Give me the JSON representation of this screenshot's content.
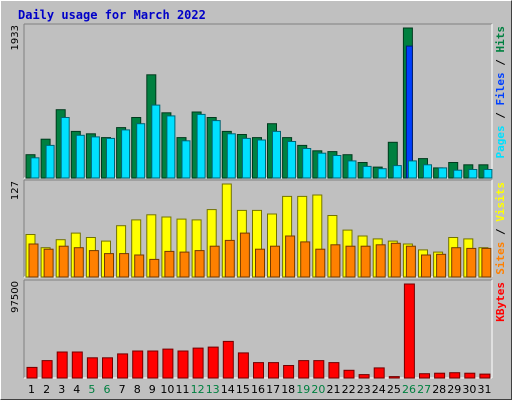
{
  "chart_data": {
    "title": "Daily usage for March 2022",
    "days": [
      "1",
      "2",
      "3",
      "4",
      "5",
      "6",
      "7",
      "8",
      "9",
      "10",
      "11",
      "12",
      "13",
      "14",
      "15",
      "16",
      "17",
      "18",
      "19",
      "20",
      "21",
      "22",
      "23",
      "24",
      "25",
      "26",
      "27",
      "28",
      "29",
      "30",
      "31"
    ],
    "weekend_days": [
      "5",
      "6",
      "12",
      "13",
      "19",
      "20",
      "26",
      "27"
    ],
    "colors": {
      "hits": "#008040",
      "files": "#0040ff",
      "pages": "#00e0ff",
      "visits": "#ffff00",
      "sites": "#ff8000",
      "kbytes": "#ff0000",
      "weekday_label": "#000000",
      "weekend_label": "#008040"
    },
    "panels": [
      {
        "type": "bar",
        "ymax_label": "1933",
        "ymax": 1933,
        "series": [
          {
            "name": "Hits",
            "values": [
              300,
              500,
              880,
              600,
              570,
              520,
              650,
              780,
              1330,
              840,
              520,
              850,
              780,
              600,
              560,
              520,
              700,
              520,
              420,
              350,
              340,
              300,
              200,
              140,
              460,
              1933,
              250,
              130,
              200,
              170,
              170
            ]
          },
          {
            "name": "Files",
            "values": [
              0,
              0,
              0,
              0,
              0,
              0,
              0,
              0,
              0,
              0,
              0,
              0,
              0,
              0,
              0,
              0,
              0,
              0,
              0,
              0,
              0,
              0,
              0,
              0,
              0,
              1700,
              0,
              0,
              0,
              0,
              0
            ]
          },
          {
            "name": "Pages",
            "values": [
              260,
              420,
              780,
              550,
              530,
              510,
              620,
              700,
              940,
              800,
              480,
              820,
              740,
              570,
              510,
              490,
              600,
              470,
              380,
              320,
              290,
              220,
              150,
              120,
              160,
              220,
              170,
              130,
              100,
              110,
              110
            ]
          }
        ],
        "right_label": [
          {
            "text": "Pages",
            "color": "#00e0ff"
          },
          {
            "text": " / ",
            "color": "#000000"
          },
          {
            "text": "Files",
            "color": "#0040ff"
          },
          {
            "text": " / ",
            "color": "#000000"
          },
          {
            "text": "Hits",
            "color": "#008040"
          }
        ]
      },
      {
        "type": "bar",
        "ymax_label": "127",
        "ymax": 127,
        "series": [
          {
            "name": "Visits",
            "values": [
              58,
              40,
              51,
              60,
              54,
              49,
              70,
              78,
              85,
              82,
              79,
              78,
              92,
              127,
              91,
              91,
              86,
              110,
              110,
              112,
              84,
              64,
              56,
              52,
              49,
              45,
              37,
              34,
              54,
              52,
              40
            ]
          },
          {
            "name": "Sites",
            "values": [
              45,
              38,
              42,
              40,
              36,
              32,
              32,
              30,
              24,
              35,
              34,
              36,
              42,
              50,
              60,
              38,
              42,
              56,
              48,
              38,
              44,
              42,
              42,
              44,
              46,
              42,
              30,
              31,
              40,
              39,
              39
            ]
          }
        ],
        "right_label": [
          {
            "text": "Sites",
            "color": "#ff8000"
          },
          {
            "text": " / ",
            "color": "#000000"
          },
          {
            "text": "Visits",
            "color": "#ffff00"
          }
        ]
      },
      {
        "type": "bar",
        "ymax_label": "97500",
        "ymax": 97500,
        "series": [
          {
            "name": "KBytes",
            "values": [
              11000,
              18000,
              27000,
              27000,
              21000,
              21000,
              25000,
              28000,
              28000,
              30000,
              28000,
              31000,
              32000,
              38000,
              26000,
              16000,
              16000,
              13000,
              18000,
              18000,
              16000,
              8000,
              3500,
              10500,
              1500,
              97500,
              4500,
              5000,
              5500,
              5000,
              4000
            ]
          }
        ],
        "right_label": [
          {
            "text": "KBytes",
            "color": "#ff0000"
          }
        ]
      }
    ]
  }
}
